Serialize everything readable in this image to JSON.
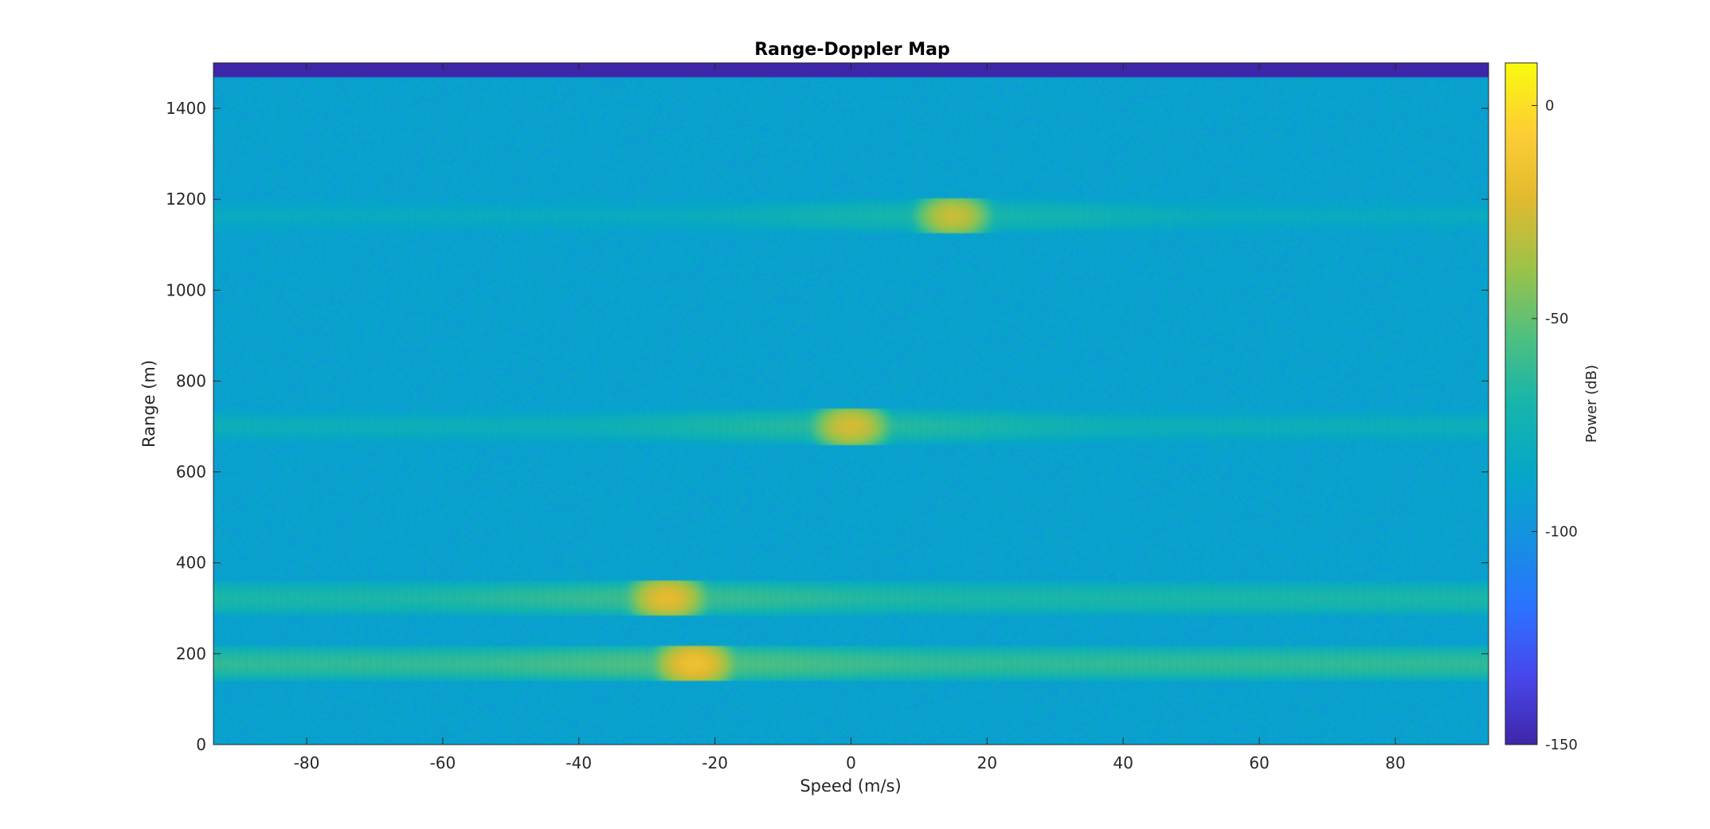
{
  "chart_data": {
    "type": "heatmap",
    "title": "Range-Doppler Map",
    "xlabel": "Speed (m/s)",
    "ylabel": "Range (m)",
    "xlim": [
      -93.7,
      93.7
    ],
    "ylim": [
      0,
      1500
    ],
    "x_ticks": [
      -80,
      -60,
      -40,
      -20,
      0,
      20,
      40,
      60,
      80
    ],
    "y_ticks": [
      0,
      200,
      400,
      600,
      800,
      1000,
      1200,
      1400
    ],
    "colorbar": {
      "label": "Power (dB)",
      "range": [
        -150,
        10
      ],
      "ticks": [
        0,
        -50,
        -100,
        -150
      ],
      "colormap": "parula"
    },
    "noise_floor_db": -90,
    "unfilled_top_band": {
      "range_from": 1470,
      "range_to": 1500,
      "value_db": -150
    },
    "targets": [
      {
        "speed": -23,
        "range": 178,
        "peak_db": -15,
        "sidelobe_db": -55,
        "streak_db": -62
      },
      {
        "speed": -27,
        "range": 322,
        "peak_db": -20,
        "sidelobe_db": -60,
        "streak_db": -68
      },
      {
        "speed": 0,
        "range": 700,
        "peak_db": -25,
        "sidelobe_db": -65,
        "streak_db": -78
      },
      {
        "speed": 15,
        "range": 1163,
        "peak_db": -28,
        "sidelobe_db": -70,
        "streak_db": -82
      }
    ]
  }
}
